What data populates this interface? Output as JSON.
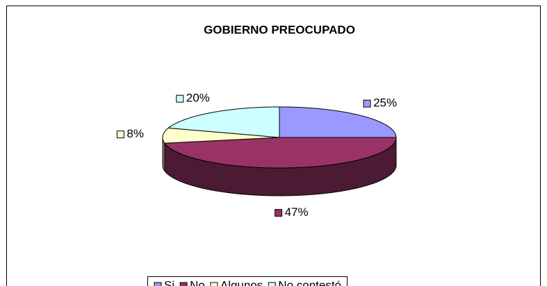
{
  "chart_data": {
    "type": "pie",
    "title": "GOBIERNO PREOCUPADO",
    "categories": [
      "Si",
      "No",
      "Algunos",
      "No contestó"
    ],
    "values": [
      25,
      47,
      8,
      20
    ],
    "value_labels": [
      "25%",
      "47%",
      "8%",
      "20%"
    ],
    "colors": [
      "#9999ff",
      "#993366",
      "#ffffcc",
      "#ccffff"
    ],
    "legend": "bottom"
  }
}
